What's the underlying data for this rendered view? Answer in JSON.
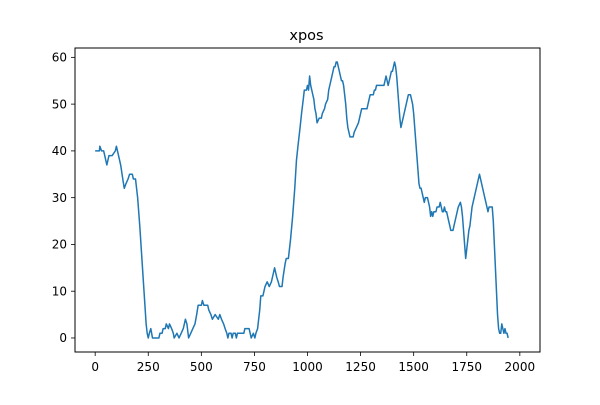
{
  "chart_data": {
    "type": "line",
    "title": "xpos",
    "xlabel": "",
    "ylabel": "",
    "xlim": [
      -95,
      2095
    ],
    "ylim": [
      -3,
      62
    ],
    "x_ticks": [
      0,
      250,
      500,
      750,
      1000,
      1250,
      1500,
      1750,
      2000
    ],
    "y_ticks": [
      0,
      10,
      20,
      30,
      40,
      50,
      60
    ],
    "grid": false,
    "legend": "none",
    "line_color": "#1f77b4",
    "series": [
      {
        "values": [
          [
            0,
            40
          ],
          [
            20,
            40
          ],
          [
            22,
            41
          ],
          [
            30,
            40
          ],
          [
            40,
            40
          ],
          [
            45,
            39
          ],
          [
            50,
            38
          ],
          [
            55,
            37
          ],
          [
            60,
            38
          ],
          [
            65,
            39
          ],
          [
            80,
            39
          ],
          [
            95,
            40
          ],
          [
            100,
            41
          ],
          [
            110,
            39
          ],
          [
            120,
            37
          ],
          [
            130,
            34
          ],
          [
            137,
            32
          ],
          [
            145,
            33
          ],
          [
            155,
            34
          ],
          [
            162,
            35
          ],
          [
            175,
            35
          ],
          [
            180,
            34
          ],
          [
            190,
            34
          ],
          [
            200,
            30
          ],
          [
            210,
            24
          ],
          [
            220,
            17
          ],
          [
            230,
            10
          ],
          [
            240,
            3
          ],
          [
            245,
            1
          ],
          [
            250,
            0
          ],
          [
            255,
            1
          ],
          [
            262,
            2
          ],
          [
            270,
            0
          ],
          [
            300,
            0
          ],
          [
            305,
            1
          ],
          [
            315,
            1
          ],
          [
            320,
            2
          ],
          [
            330,
            2
          ],
          [
            335,
            3
          ],
          [
            345,
            2
          ],
          [
            350,
            3
          ],
          [
            360,
            2
          ],
          [
            368,
            1
          ],
          [
            372,
            0
          ],
          [
            385,
            1
          ],
          [
            395,
            0
          ],
          [
            405,
            1
          ],
          [
            415,
            2
          ],
          [
            425,
            4
          ],
          [
            432,
            3
          ],
          [
            440,
            0
          ],
          [
            450,
            1
          ],
          [
            460,
            2
          ],
          [
            470,
            3
          ],
          [
            478,
            5
          ],
          [
            485,
            7
          ],
          [
            500,
            7
          ],
          [
            505,
            8
          ],
          [
            512,
            7
          ],
          [
            530,
            7
          ],
          [
            535,
            6
          ],
          [
            545,
            5
          ],
          [
            552,
            4
          ],
          [
            565,
            5
          ],
          [
            580,
            4
          ],
          [
            587,
            5
          ],
          [
            595,
            4
          ],
          [
            605,
            3
          ],
          [
            612,
            2
          ],
          [
            620,
            1
          ],
          [
            625,
            0
          ],
          [
            630,
            1
          ],
          [
            640,
            1
          ],
          [
            645,
            0
          ],
          [
            650,
            1
          ],
          [
            660,
            1
          ],
          [
            665,
            0
          ],
          [
            670,
            1
          ],
          [
            700,
            1
          ],
          [
            705,
            2
          ],
          [
            725,
            2
          ],
          [
            730,
            1
          ],
          [
            735,
            0
          ],
          [
            745,
            1
          ],
          [
            752,
            0
          ],
          [
            757,
            1
          ],
          [
            765,
            2
          ],
          [
            770,
            4
          ],
          [
            775,
            6
          ],
          [
            780,
            9
          ],
          [
            790,
            9
          ],
          [
            795,
            10
          ],
          [
            800,
            11
          ],
          [
            810,
            12
          ],
          [
            820,
            11
          ],
          [
            830,
            12
          ],
          [
            840,
            14
          ],
          [
            845,
            15
          ],
          [
            855,
            13
          ],
          [
            862,
            12
          ],
          [
            868,
            11
          ],
          [
            880,
            11
          ],
          [
            885,
            13
          ],
          [
            895,
            16
          ],
          [
            900,
            17
          ],
          [
            910,
            17
          ],
          [
            915,
            19
          ],
          [
            920,
            21
          ],
          [
            930,
            26
          ],
          [
            940,
            32
          ],
          [
            948,
            38
          ],
          [
            955,
            41
          ],
          [
            965,
            45
          ],
          [
            972,
            48
          ],
          [
            980,
            51
          ],
          [
            985,
            53
          ],
          [
            995,
            53
          ],
          [
            1000,
            54
          ],
          [
            1005,
            53
          ],
          [
            1010,
            56
          ],
          [
            1015,
            54
          ],
          [
            1020,
            53
          ],
          [
            1025,
            52
          ],
          [
            1030,
            51
          ],
          [
            1035,
            49
          ],
          [
            1040,
            48
          ],
          [
            1045,
            46
          ],
          [
            1055,
            47
          ],
          [
            1065,
            47
          ],
          [
            1070,
            48
          ],
          [
            1080,
            49
          ],
          [
            1085,
            50
          ],
          [
            1095,
            51
          ],
          [
            1100,
            53
          ],
          [
            1110,
            55
          ],
          [
            1115,
            56
          ],
          [
            1120,
            57
          ],
          [
            1125,
            58
          ],
          [
            1130,
            58
          ],
          [
            1135,
            59
          ],
          [
            1140,
            59
          ],
          [
            1145,
            58
          ],
          [
            1150,
            57
          ],
          [
            1155,
            56
          ],
          [
            1160,
            55
          ],
          [
            1165,
            55
          ],
          [
            1170,
            54
          ],
          [
            1175,
            52
          ],
          [
            1180,
            50
          ],
          [
            1185,
            47
          ],
          [
            1190,
            45
          ],
          [
            1195,
            44
          ],
          [
            1200,
            43
          ],
          [
            1215,
            43
          ],
          [
            1220,
            44
          ],
          [
            1230,
            45
          ],
          [
            1240,
            46
          ],
          [
            1245,
            47
          ],
          [
            1250,
            48
          ],
          [
            1255,
            49
          ],
          [
            1280,
            49
          ],
          [
            1285,
            50
          ],
          [
            1290,
            51
          ],
          [
            1295,
            52
          ],
          [
            1310,
            52
          ],
          [
            1315,
            53
          ],
          [
            1320,
            53
          ],
          [
            1325,
            54
          ],
          [
            1350,
            54
          ],
          [
            1360,
            54
          ],
          [
            1365,
            55
          ],
          [
            1370,
            56
          ],
          [
            1375,
            55
          ],
          [
            1380,
            54
          ],
          [
            1385,
            55
          ],
          [
            1390,
            56
          ],
          [
            1395,
            57
          ],
          [
            1400,
            57
          ],
          [
            1405,
            58
          ],
          [
            1410,
            59
          ],
          [
            1415,
            58
          ],
          [
            1420,
            56
          ],
          [
            1425,
            53
          ],
          [
            1430,
            50
          ],
          [
            1435,
            47
          ],
          [
            1440,
            45
          ],
          [
            1445,
            46
          ],
          [
            1450,
            47
          ],
          [
            1455,
            48
          ],
          [
            1460,
            49
          ],
          [
            1465,
            50
          ],
          [
            1470,
            51
          ],
          [
            1475,
            52
          ],
          [
            1485,
            52
          ],
          [
            1490,
            51
          ],
          [
            1495,
            50
          ],
          [
            1500,
            48
          ],
          [
            1505,
            45
          ],
          [
            1510,
            42
          ],
          [
            1515,
            39
          ],
          [
            1520,
            36
          ],
          [
            1525,
            33
          ],
          [
            1530,
            32
          ],
          [
            1535,
            32
          ],
          [
            1540,
            31
          ],
          [
            1545,
            30
          ],
          [
            1550,
            29
          ],
          [
            1555,
            30
          ],
          [
            1565,
            30
          ],
          [
            1570,
            29
          ],
          [
            1575,
            28
          ],
          [
            1580,
            26
          ],
          [
            1585,
            27
          ],
          [
            1590,
            26
          ],
          [
            1595,
            27
          ],
          [
            1605,
            27
          ],
          [
            1610,
            28
          ],
          [
            1620,
            28
          ],
          [
            1625,
            29
          ],
          [
            1630,
            28
          ],
          [
            1635,
            27
          ],
          [
            1640,
            27
          ],
          [
            1645,
            28
          ],
          [
            1650,
            27
          ],
          [
            1655,
            27
          ],
          [
            1660,
            26
          ],
          [
            1665,
            25
          ],
          [
            1670,
            24
          ],
          [
            1675,
            23
          ],
          [
            1685,
            23
          ],
          [
            1690,
            24
          ],
          [
            1700,
            26
          ],
          [
            1705,
            27
          ],
          [
            1710,
            28
          ],
          [
            1720,
            29
          ],
          [
            1725,
            28
          ],
          [
            1730,
            26
          ],
          [
            1735,
            23
          ],
          [
            1740,
            20
          ],
          [
            1745,
            17
          ],
          [
            1750,
            19
          ],
          [
            1755,
            21
          ],
          [
            1760,
            23
          ],
          [
            1765,
            24
          ],
          [
            1770,
            26
          ],
          [
            1775,
            28
          ],
          [
            1780,
            29
          ],
          [
            1785,
            30
          ],
          [
            1790,
            31
          ],
          [
            1795,
            32
          ],
          [
            1800,
            33
          ],
          [
            1805,
            34
          ],
          [
            1810,
            35
          ],
          [
            1815,
            34
          ],
          [
            1820,
            33
          ],
          [
            1825,
            32
          ],
          [
            1830,
            31
          ],
          [
            1835,
            30
          ],
          [
            1840,
            29
          ],
          [
            1845,
            28
          ],
          [
            1850,
            27
          ],
          [
            1855,
            28
          ],
          [
            1870,
            28
          ],
          [
            1875,
            25
          ],
          [
            1880,
            20
          ],
          [
            1885,
            15
          ],
          [
            1890,
            10
          ],
          [
            1895,
            5
          ],
          [
            1900,
            2
          ],
          [
            1905,
            1
          ],
          [
            1910,
            1
          ],
          [
            1915,
            3
          ],
          [
            1920,
            2
          ],
          [
            1925,
            1
          ],
          [
            1930,
            2
          ],
          [
            1935,
            1
          ],
          [
            1940,
            1
          ],
          [
            1945,
            0
          ]
        ]
      }
    ]
  }
}
